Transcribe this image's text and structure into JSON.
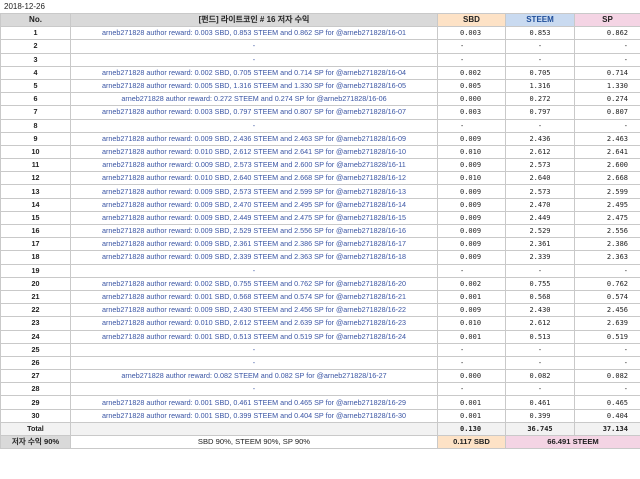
{
  "date": "2018-12-26",
  "headers": {
    "no": "No.",
    "title": "[펀드] 라이트코인 # 16 저자 수익",
    "sbd": "SBD",
    "steem": "STEEM",
    "sp": "SP"
  },
  "rows": [
    {
      "no": "1",
      "desc": "arneb271828 author reward: 0.003 SBD, 0.853 STEEM and 0.862 SP for @arneb271828/16-01",
      "sbd": "0.003",
      "steem": "0.853",
      "sp": "0.862"
    },
    {
      "no": "2",
      "desc": "-",
      "sbd": "-",
      "steem": "-",
      "sp": "-"
    },
    {
      "no": "3",
      "desc": "-",
      "sbd": "-",
      "steem": "-",
      "sp": "-"
    },
    {
      "no": "4",
      "desc": "arneb271828 author reward: 0.002 SBD, 0.705 STEEM and 0.714 SP for @arneb271828/16-04",
      "sbd": "0.002",
      "steem": "0.705",
      "sp": "0.714"
    },
    {
      "no": "5",
      "desc": "arneb271828 author reward: 0.005 SBD, 1.316 STEEM and 1.330 SP for @arneb271828/16-05",
      "sbd": "0.005",
      "steem": "1.316",
      "sp": "1.330"
    },
    {
      "no": "6",
      "desc": "arneb271828 author reward: 0.272 STEEM and 0.274 SP for @arneb271828/16-06",
      "sbd": "0.000",
      "steem": "0.272",
      "sp": "0.274"
    },
    {
      "no": "7",
      "desc": "arneb271828 author reward: 0.003 SBD, 0.797 STEEM and 0.807 SP for @arneb271828/16-07",
      "sbd": "0.003",
      "steem": "0.797",
      "sp": "0.807"
    },
    {
      "no": "8",
      "desc": "-",
      "sbd": "-",
      "steem": "-",
      "sp": "-"
    },
    {
      "no": "9",
      "desc": "arneb271828 author reward: 0.009 SBD, 2.436 STEEM and 2.463 SP for @arneb271828/16-09",
      "sbd": "0.009",
      "steem": "2.436",
      "sp": "2.463"
    },
    {
      "no": "10",
      "desc": "arneb271828 author reward: 0.010 SBD, 2.612 STEEM and 2.641 SP for @arneb271828/16-10",
      "sbd": "0.010",
      "steem": "2.612",
      "sp": "2.641"
    },
    {
      "no": "11",
      "desc": "arneb271828 author reward: 0.009 SBD, 2.573 STEEM and 2.600 SP for @arneb271828/16-11",
      "sbd": "0.009",
      "steem": "2.573",
      "sp": "2.600",
      "sep": true
    },
    {
      "no": "12",
      "desc": "arneb271828 author reward: 0.010 SBD, 2.640 STEEM and 2.668 SP for @arneb271828/16-12",
      "sbd": "0.010",
      "steem": "2.640",
      "sp": "2.668"
    },
    {
      "no": "13",
      "desc": "arneb271828 author reward: 0.009 SBD, 2.573 STEEM and 2.599 SP for @arneb271828/16-13",
      "sbd": "0.009",
      "steem": "2.573",
      "sp": "2.599"
    },
    {
      "no": "14",
      "desc": "arneb271828 author reward: 0.009 SBD, 2.470 STEEM and 2.495 SP for @arneb271828/16-14",
      "sbd": "0.009",
      "steem": "2.470",
      "sp": "2.495"
    },
    {
      "no": "15",
      "desc": "arneb271828 author reward: 0.009 SBD, 2.449 STEEM and 2.475 SP for @arneb271828/16-15",
      "sbd": "0.009",
      "steem": "2.449",
      "sp": "2.475"
    },
    {
      "no": "16",
      "desc": "arneb271828 author reward: 0.009 SBD, 2.529 STEEM and 2.556 SP for @arneb271828/16-16",
      "sbd": "0.009",
      "steem": "2.529",
      "sp": "2.556"
    },
    {
      "no": "17",
      "desc": "arneb271828 author reward: 0.009 SBD, 2.361 STEEM and 2.386 SP for @arneb271828/16-17",
      "sbd": "0.009",
      "steem": "2.361",
      "sp": "2.386"
    },
    {
      "no": "18",
      "desc": "arneb271828 author reward: 0.009 SBD, 2.339 STEEM and 2.363 SP for @arneb271828/16-18",
      "sbd": "0.009",
      "steem": "2.339",
      "sp": "2.363"
    },
    {
      "no": "19",
      "desc": "-",
      "sbd": "-",
      "steem": "-",
      "sp": "-"
    },
    {
      "no": "20",
      "desc": "arneb271828 author reward: 0.002 SBD, 0.755 STEEM and 0.762 SP for @arneb271828/16-20",
      "sbd": "0.002",
      "steem": "0.755",
      "sp": "0.762"
    },
    {
      "no": "21",
      "desc": "arneb271828 author reward: 0.001 SBD, 0.568 STEEM and 0.574 SP for @arneb271828/16-21",
      "sbd": "0.001",
      "steem": "0.568",
      "sp": "0.574",
      "sep": true
    },
    {
      "no": "22",
      "desc": "arneb271828 author reward: 0.009 SBD, 2.430 STEEM and 2.456 SP for @arneb271828/16-22",
      "sbd": "0.009",
      "steem": "2.430",
      "sp": "2.456"
    },
    {
      "no": "23",
      "desc": "arneb271828 author reward: 0.010 SBD, 2.612 STEEM and 2.639 SP for @arneb271828/16-23",
      "sbd": "0.010",
      "steem": "2.612",
      "sp": "2.639"
    },
    {
      "no": "24",
      "desc": "arneb271828 author reward: 0.001 SBD, 0.513 STEEM and 0.519 SP for @arneb271828/16-24",
      "sbd": "0.001",
      "steem": "0.513",
      "sp": "0.519"
    },
    {
      "no": "25",
      "desc": "-",
      "sbd": "-",
      "steem": "-",
      "sp": "-"
    },
    {
      "no": "26",
      "desc": "-",
      "sbd": "-",
      "steem": "-",
      "sp": "-"
    },
    {
      "no": "27",
      "desc": "arneb271828 author reward: 0.082 STEEM and 0.082 SP for @arneb271828/16-27",
      "sbd": "0.000",
      "steem": "0.082",
      "sp": "0.082"
    },
    {
      "no": "28",
      "desc": "-",
      "sbd": "-",
      "steem": "-",
      "sp": "-"
    },
    {
      "no": "29",
      "desc": "arneb271828 author reward: 0.001 SBD, 0.461 STEEM and 0.465 SP for @arneb271828/16-29",
      "sbd": "0.001",
      "steem": "0.461",
      "sp": "0.465"
    },
    {
      "no": "30",
      "desc": "arneb271828 author reward: 0.001 SBD, 0.399 STEEM and 0.404 SP for @arneb271828/16-30",
      "sbd": "0.001",
      "steem": "0.399",
      "sp": "0.404"
    }
  ],
  "total": {
    "label": "Total",
    "sbd": "0.130",
    "steem": "36.745",
    "sp": "37.134"
  },
  "summary": {
    "label": "저자 수익 90%",
    "desc": "SBD 90%, STEEM 90%, SP 90%",
    "sbd": "0.117 SBD",
    "steem_sp": "66.491 STEEM"
  },
  "colors": {
    "link_text": "#3a55a4",
    "header_bg": "#d9d9d9",
    "sbd_header": "#fde2c6",
    "steem_header": "#c9daf0",
    "sp_header": "#f4d4e4"
  }
}
